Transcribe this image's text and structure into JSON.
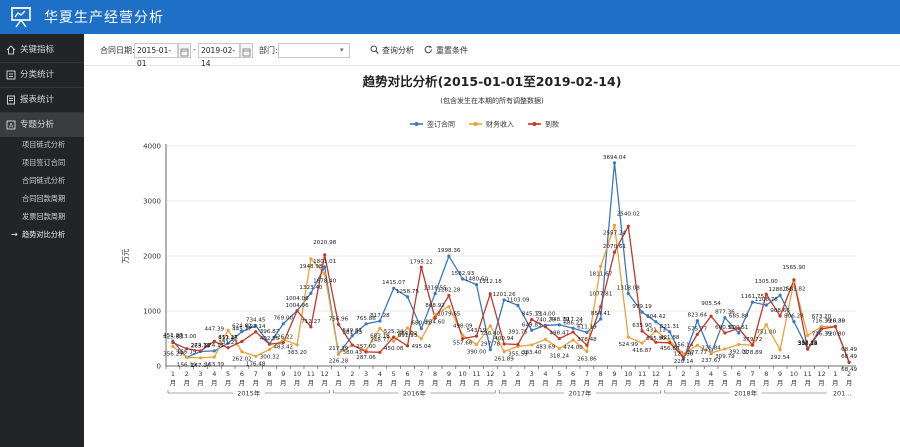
{
  "app": {
    "title": "华夏生产经营分析"
  },
  "sidebar": {
    "items": [
      {
        "label": "关键指标"
      },
      {
        "label": "分类统计"
      },
      {
        "label": "报表统计"
      },
      {
        "label": "专题分析"
      }
    ],
    "subitems": [
      {
        "label": "项目链式分析"
      },
      {
        "label": "项目签订合同"
      },
      {
        "label": "合同链式分析"
      },
      {
        "label": "合同回款周期"
      },
      {
        "label": "发票回款周期"
      },
      {
        "label": "趋势对比分析"
      }
    ]
  },
  "toolbar": {
    "date_label": "合同日期:",
    "start_date": "2015-01-01",
    "separator": "-",
    "end_date": "2019-02-14",
    "dept_label": "部门:",
    "dept_value": "",
    "query_label": "查询分析",
    "reset_label": "重置条件"
  },
  "chart_data": {
    "type": "line",
    "title": "趋势对比分析(2015-01-01至2019-02-14)",
    "subtitle": "(包含发生在本期的所有调整数据)",
    "ylabel": "万元",
    "ylim": [
      0,
      4000
    ],
    "yticks": [
      0,
      1000,
      2000,
      3000,
      4000
    ],
    "legend_position": "top-center",
    "grid": true,
    "categories": [
      "1",
      "2",
      "3",
      "4",
      "5",
      "6",
      "7",
      "8",
      "9",
      "10",
      "11",
      "12",
      "1",
      "2",
      "3",
      "4",
      "5",
      "6",
      "7",
      "8",
      "9",
      "10",
      "11",
      "12",
      "1",
      "2",
      "3",
      "4",
      "5",
      "6",
      "7",
      "8",
      "9",
      "10",
      "11",
      "12",
      "1",
      "2",
      "3",
      "4",
      "5",
      "6",
      "7",
      "8",
      "9",
      "10",
      "11",
      "12",
      "1",
      "2"
    ],
    "month_unit": "月",
    "years": [
      {
        "label": "2015年",
        "span": 12
      },
      {
        "label": "2016年",
        "span": 12
      },
      {
        "label": "2017年",
        "span": 12
      },
      {
        "label": "2018年",
        "span": 12
      },
      {
        "label": "201...",
        "span": 2
      }
    ],
    "series": [
      {
        "name": "签订合同",
        "color": "#3a78c0",
        "values": [
          451.97,
          156.19,
          263.39,
          274.11,
          413.45,
          624.62,
          734.45,
          402.55,
          769.0,
          1004.06,
          1323.4,
          1801.01,
          217.39,
          549.81,
          765.86,
          817.28,
          1415.07,
          1258.75,
          680.41,
          1316.55,
          1998.36,
          1582.93,
          1480.6,
          297.78,
          1201.26,
          1103.09,
          649.83,
          740.2,
          748.79,
          686.22,
          611.19,
          854.41,
          3694.04,
          1318.08,
          979.19,
          804.42,
          621.31,
          121.88,
          823.64,
          225.84,
          877.36,
          600.51,
          1161.75,
          1106.78,
          1286.74,
          806.28,
          313.54,
          716.39,
          720.8,
          68.49
        ]
      },
      {
        "name": "财务收入",
        "color": "#e8a23a",
        "values": [
          356.29,
          156.19,
          147.14,
          163.39,
          651.27,
          262.02,
          176.48,
          300.32,
          483.42,
          383.2,
          1948.98,
          1678.4,
          226.28,
          380.43,
          287.06,
          683.18,
          450.08,
          691.93,
          495.04,
          934.6,
          1079.65,
          557.66,
          390.0,
          730.4,
          261.89,
          355.59,
          383.4,
          483.69,
          318.24,
          474.0,
          263.86,
          1811.67,
          2557.24,
          524.99,
          416.87,
          635.9,
          456.6,
          220.14,
          377.77,
          237.67,
          309.79,
          392.01,
          378.89,
          751.0,
          292.54,
          1531.82,
          557.15,
          716.39,
          720.8,
          68.49
        ]
      },
      {
        "name": "到款",
        "color": "#c0392b",
        "values": [
          425.63,
          313.0,
          274.11,
          447.39,
          331.23,
          445.37,
          622.14,
          396.87,
          426.22,
          1004.06,
          712.27,
          2020.98,
          756.96,
          381.03,
          257.0,
          248.77,
          525.24,
          366.02,
          1795.22,
          868.92,
          1282.28,
          498.09,
          543.19,
          1312.18,
          400.94,
          391.75,
          845.13,
          714.0,
          498.47,
          617.24,
          378.48,
          1077.81,
          2070.61,
          2540.02,
          635.9,
          431.13,
          421.88,
          156.14,
          575.77,
          905.54,
          600.51,
          685.8,
          379.72,
          1305.0,
          908.66,
          1565.9,
          306.28,
          673.2,
          716.39,
          68.49
        ]
      }
    ]
  }
}
